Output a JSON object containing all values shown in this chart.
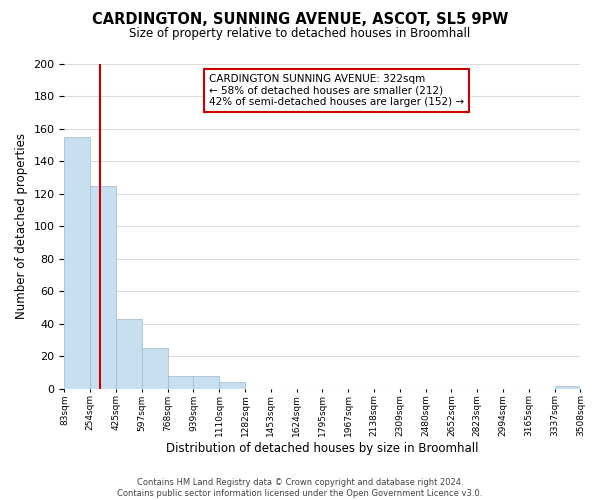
{
  "title_line1": "CARDINGTON, SUNNING AVENUE, ASCOT, SL5 9PW",
  "title_line2": "Size of property relative to detached houses in Broomhall",
  "xlabel": "Distribution of detached houses by size in Broomhall",
  "ylabel": "Number of detached properties",
  "bar_values": [
    155,
    125,
    43,
    25,
    8,
    8,
    4,
    0,
    0,
    0,
    0,
    0,
    0,
    0,
    0,
    0,
    0,
    0,
    0,
    2
  ],
  "bar_color": "#c8dff0",
  "bar_edge_color": "#a0b8cc",
  "tick_labels": [
    "83sqm",
    "254sqm",
    "425sqm",
    "597sqm",
    "768sqm",
    "939sqm",
    "1110sqm",
    "1282sqm",
    "1453sqm",
    "1624sqm",
    "1795sqm",
    "1967sqm",
    "2138sqm",
    "2309sqm",
    "2480sqm",
    "2652sqm",
    "2823sqm",
    "2994sqm",
    "3165sqm",
    "3337sqm",
    "3508sqm"
  ],
  "vline_color": "#cc0000",
  "property_sqm": 322,
  "bin_edges": [
    83,
    254,
    425,
    597,
    768,
    939,
    1110,
    1282,
    1453,
    1624,
    1795,
    1967,
    2138,
    2309,
    2480,
    2652,
    2823,
    2994,
    3165,
    3337,
    3508
  ],
  "annotation_line1": "CARDINGTON SUNNING AVENUE: 322sqm",
  "annotation_line2": "← 58% of detached houses are smaller (212)",
  "annotation_line3": "42% of semi-detached houses are larger (152) →",
  "annotation_box_color": "#ffffff",
  "annotation_box_edge": "#cc0000",
  "ylim": [
    0,
    200
  ],
  "yticks": [
    0,
    20,
    40,
    60,
    80,
    100,
    120,
    140,
    160,
    180,
    200
  ],
  "footer_line1": "Contains HM Land Registry data © Crown copyright and database right 2024.",
  "footer_line2": "Contains public sector information licensed under the Open Government Licence v3.0.",
  "background_color": "#ffffff",
  "grid_color": "#dddddd"
}
